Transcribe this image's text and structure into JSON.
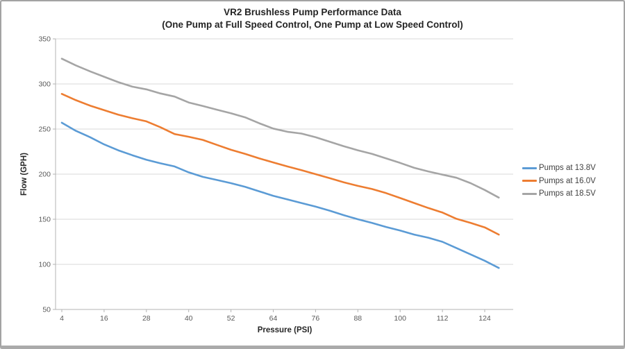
{
  "chart_data": {
    "type": "line",
    "title": "VR2 Brushless Pump Performance Data",
    "subtitle": "(One Pump at Full Speed Control, One Pump at Low Speed Control)",
    "xlabel": "Pressure (PSI)",
    "ylabel": "Flow (GPH)",
    "x": [
      4,
      8,
      12,
      16,
      20,
      24,
      28,
      32,
      36,
      40,
      44,
      48,
      52,
      56,
      60,
      64,
      68,
      72,
      76,
      80,
      84,
      88,
      92,
      96,
      100,
      104,
      108,
      112,
      116,
      120,
      124,
      128
    ],
    "x_tick_labels": [
      "4",
      "16",
      "28",
      "40",
      "52",
      "64",
      "76",
      "88",
      "100",
      "112",
      "124"
    ],
    "y_ticks": [
      50,
      100,
      150,
      200,
      250,
      300,
      350
    ],
    "ylim": [
      50,
      350
    ],
    "grid": "horizontal",
    "legend_position": "right",
    "series": [
      {
        "name": "Pumps at 13.8V",
        "color": "#5B9BD5",
        "values": [
          257,
          248,
          241,
          233,
          226.5,
          221,
          216,
          212,
          208.5,
          202,
          197,
          193.5,
          190,
          186,
          181,
          176,
          172,
          168,
          164,
          159.5,
          154.5,
          150,
          146,
          141.5,
          137.5,
          133,
          129.5,
          125,
          118,
          111,
          104,
          96
        ]
      },
      {
        "name": "Pumps at 16.0V",
        "color": "#ED7D31",
        "values": [
          289,
          282,
          276,
          271,
          266,
          262,
          258.5,
          252,
          244.5,
          241.5,
          238,
          232.5,
          227,
          222.5,
          217.5,
          213,
          208.5,
          204.5,
          200,
          195.5,
          191,
          187,
          183.5,
          179,
          173.5,
          168,
          162.5,
          157.5,
          150.5,
          146,
          141,
          133
        ]
      },
      {
        "name": "Pumps at 18.5V",
        "color": "#A5A5A5",
        "values": [
          328,
          320.5,
          314,
          308,
          302,
          297,
          294,
          289.5,
          286,
          279.5,
          275.5,
          271.5,
          267.5,
          263,
          256.5,
          250.5,
          247,
          245,
          241,
          236,
          231,
          226.5,
          222.5,
          217.5,
          212.5,
          207,
          203,
          199.5,
          196,
          190,
          182.5,
          174
        ]
      }
    ]
  }
}
